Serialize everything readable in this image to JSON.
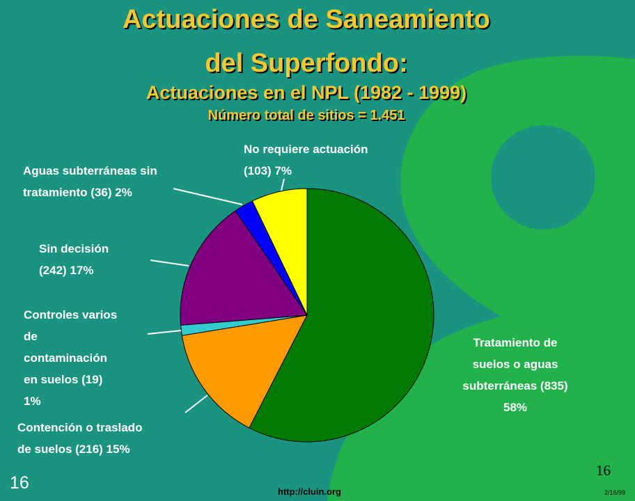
{
  "slide": {
    "title_line1": "Actuaciones de Saneamiento",
    "title_line2": "del Superfondo:",
    "subtitle": "Actuaciones en el NPL (1982 - 1999)",
    "total_line": "Número total de sitios = 1.451",
    "footer_number_left": "16",
    "footer_number_right": "16",
    "footer_url": "http://cluin.org",
    "footer_date": "2/16/99"
  },
  "colors": {
    "background": "#1a9480",
    "logo_green": "#22b24c",
    "title": "#f2c82f"
  },
  "chart_data": {
    "type": "pie",
    "title": "Número total de sitios = 1.451",
    "start": "top, clockwise",
    "slices": [
      {
        "label": "Tratamiento de suelos o aguas subterráneas (835) 58%",
        "count": 835,
        "percent": 58,
        "color": "#007a00"
      },
      {
        "label": "Contención o traslado de suelos (216) 15%",
        "count": 216,
        "percent": 15,
        "color": "#ff9a00"
      },
      {
        "label": "Controles varios de contaminación en suelos (19) 1%",
        "count": 19,
        "percent": 1,
        "color": "#33cccc"
      },
      {
        "label": "Sin decisión (242) 17%",
        "count": 242,
        "percent": 17,
        "color": "#800080"
      },
      {
        "label": "Aguas subterráneas sin tratamiento (36) 2%",
        "count": 36,
        "percent": 2,
        "color": "#0000ff"
      },
      {
        "label": "No requiere actuación (103) 7%",
        "count": 103,
        "percent": 7,
        "color": "#ffff00"
      }
    ],
    "label_lines": {
      "treatment": [
        "Tratamiento de",
        "suelos o aguas",
        "subterráneas (835)",
        "58%"
      ],
      "containment": [
        "Contención o traslado",
        "de suelos (216) 15%"
      ],
      "controls": [
        "Controles varios",
        "de",
        "contaminación",
        "en suelos (19)",
        "1%"
      ],
      "undecided": [
        "Sin decisión",
        "(242) 17%"
      ],
      "groundwater": [
        "Aguas subterráneas sin",
        "tratamiento (36) 2%"
      ],
      "no_action": [
        "No requiere actuación",
        "(103) 7%"
      ]
    }
  }
}
